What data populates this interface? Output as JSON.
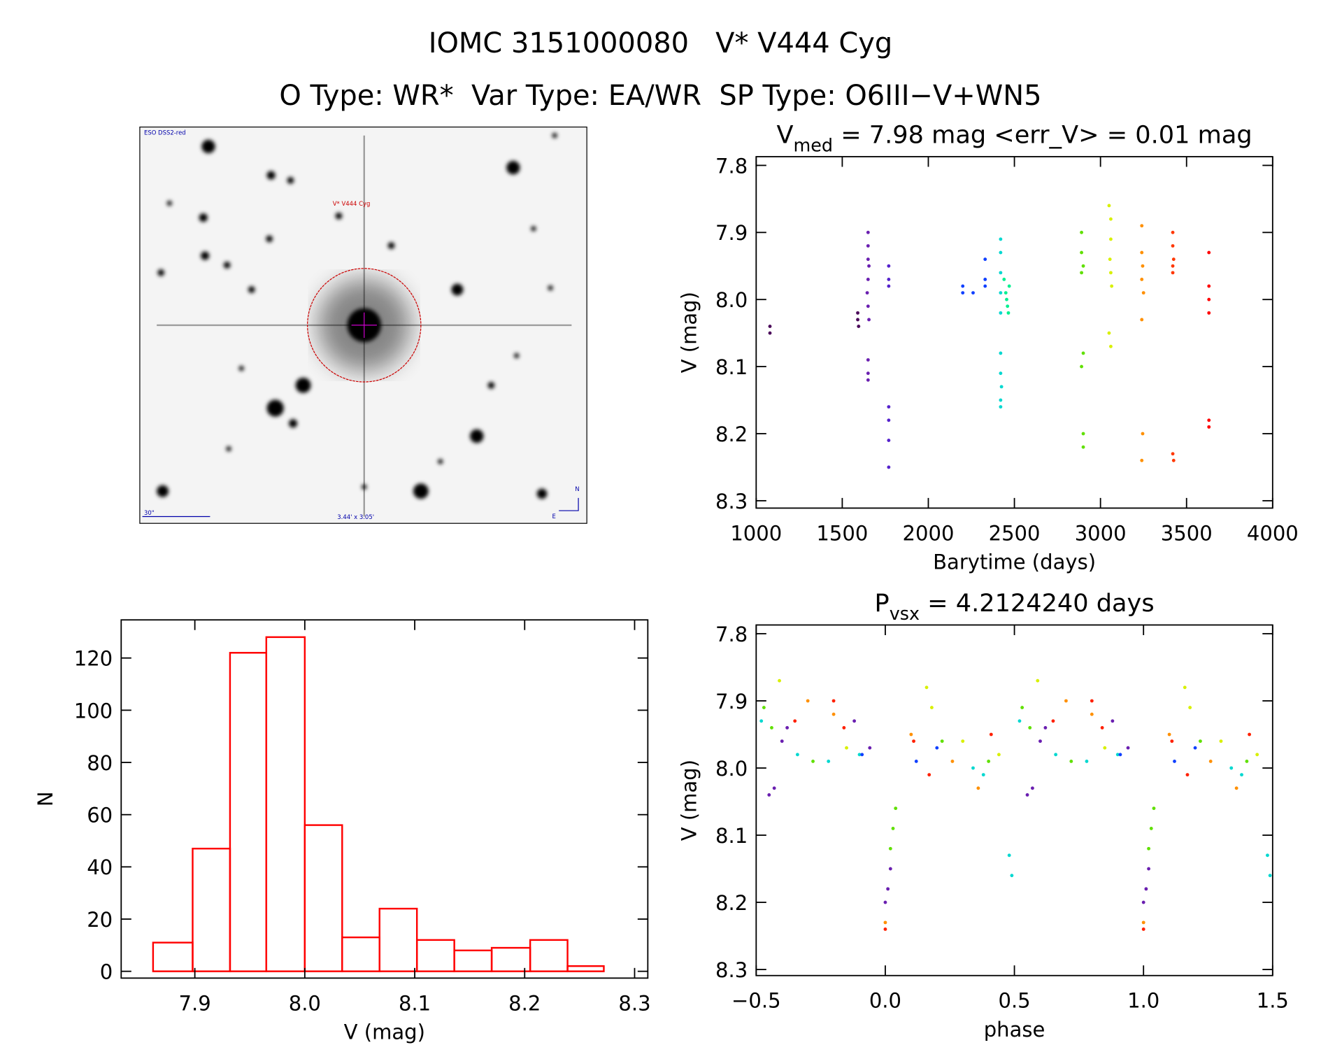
{
  "header": {
    "title": "IOMC 3151000080   V* V444 Cyg",
    "subtitle": "O Type: WR*  Var Type: EA/WR  SP Type: O6III−V+WN5"
  },
  "image": {
    "survey": "ESO DSS2-red",
    "target": "V* V444 Cyg",
    "scale": "30\"",
    "size": "3.44' x 3.05'",
    "north": "N",
    "east": "E"
  },
  "chart_data": [
    {
      "type": "scatter",
      "title": {
        "base": "V",
        "sub": "med",
        "text": " = 7.98 mag <err_V> = 0.01 mag"
      },
      "xlabel": "Barytime (days)",
      "ylabel": "V (mag)",
      "xlim": [
        1000,
        4000
      ],
      "xticks": [
        1000,
        1500,
        2000,
        2500,
        3000,
        3500,
        4000
      ],
      "ylim": [
        7.787,
        8.311
      ],
      "y_inverted": true,
      "yticks": [
        7.8,
        7.9,
        {
          "value": 8,
          "label": "8.0"
        },
        8.1,
        8.2,
        8.3
      ],
      "series": [
        {
          "color": "#4b0a5a",
          "x": [
            1080,
            1080,
            1590,
            1595,
            1590
          ],
          "values": [
            8.04,
            8.05,
            8.03,
            8.04,
            8.02
          ]
        },
        {
          "color": "#6a1fb0",
          "x": [
            1650,
            1650,
            1650,
            1655,
            1650,
            1645,
            1650,
            1655,
            1650,
            1650,
            1650
          ],
          "values": [
            7.9,
            7.92,
            7.94,
            7.95,
            7.97,
            7.99,
            8.01,
            8.03,
            8.09,
            8.11,
            8.12
          ]
        },
        {
          "color": "#5522cc",
          "x": [
            1770,
            1770,
            1770,
            1770,
            1770,
            1770,
            1770
          ],
          "values": [
            7.95,
            7.97,
            7.98,
            8.16,
            8.18,
            8.21,
            8.25
          ]
        },
        {
          "color": "#1040ff",
          "x": [
            2200,
            2200,
            2260,
            2330,
            2330,
            2330
          ],
          "values": [
            7.98,
            7.99,
            7.99,
            7.94,
            7.97,
            7.98
          ]
        },
        {
          "color": "#00d8d0",
          "x": [
            2420,
            2420,
            2420,
            2420,
            2420,
            2420,
            2420,
            2425,
            2420,
            2420
          ],
          "values": [
            7.91,
            7.93,
            7.96,
            7.99,
            8.02,
            8.08,
            8.11,
            8.13,
            8.15,
            8.16
          ]
        },
        {
          "color": "#00f090",
          "x": [
            2440,
            2450,
            2460,
            2470,
            2455,
            2465
          ],
          "values": [
            7.97,
            7.99,
            8.01,
            7.98,
            8.0,
            8.02
          ]
        },
        {
          "color": "#60e000",
          "x": [
            2890,
            2890,
            2900,
            2890,
            2900,
            2890,
            2900,
            2900
          ],
          "values": [
            7.9,
            7.93,
            7.95,
            7.96,
            8.08,
            8.1,
            8.2,
            8.22
          ]
        },
        {
          "color": "#d8f000",
          "x": [
            3050,
            3060,
            3060,
            3055,
            3060,
            3065,
            3050,
            3060
          ],
          "values": [
            7.86,
            7.88,
            7.91,
            7.94,
            7.96,
            7.98,
            8.05,
            8.07
          ]
        },
        {
          "color": "#ff9000",
          "x": [
            3240,
            3240,
            3245,
            3240,
            3250,
            3240,
            3245,
            3240
          ],
          "values": [
            7.89,
            7.93,
            7.95,
            7.97,
            7.99,
            8.03,
            8.2,
            8.24
          ]
        },
        {
          "color": "#ff3800",
          "x": [
            3420,
            3420,
            3425,
            3420,
            3420,
            3420,
            3425
          ],
          "values": [
            7.9,
            7.92,
            7.94,
            7.95,
            7.96,
            8.23,
            8.24
          ]
        },
        {
          "color": "#ff0000",
          "x": [
            3630,
            3630,
            3630,
            3630,
            3630,
            3630
          ],
          "values": [
            7.93,
            7.98,
            8.0,
            8.02,
            8.18,
            8.19
          ]
        }
      ]
    },
    {
      "type": "histogram",
      "xlabel": "V (mag)",
      "ylabel": "N",
      "color": "#ff0000",
      "bins": [
        7.862,
        7.898,
        7.932,
        7.965,
        8.0,
        8.034,
        8.068,
        8.102,
        8.136,
        8.17,
        8.205,
        8.239,
        8.272
      ],
      "counts": [
        11,
        47,
        122,
        128,
        56,
        13,
        24,
        12,
        8,
        9,
        12,
        2
      ],
      "xlim": [
        7.833,
        8.312
      ],
      "xticks": [
        7.9,
        {
          "value": 8,
          "label": "8.0"
        },
        8.1,
        8.2,
        8.3
      ],
      "ylim": [
        -2.6,
        134.6
      ],
      "yticks": [
        0,
        20,
        40,
        60,
        80,
        100,
        120
      ]
    },
    {
      "type": "scatter",
      "title": {
        "base": "P",
        "sub": "vsx",
        "text": " = 4.2124240 days"
      },
      "xlabel": "phase",
      "ylabel": "V (mag)",
      "xlim": [
        -0.5,
        1.5
      ],
      "xticks": [
        {
          "value": -0.5,
          "label": "−0.5"
        },
        {
          "value": 0,
          "label": "0.0"
        },
        0.5,
        {
          "value": 1,
          "label": "1.0"
        },
        1.5
      ],
      "ylim": [
        7.787,
        8.309
      ],
      "y_inverted": true,
      "yticks": [
        7.8,
        7.9,
        {
          "value": 8,
          "label": "8.0"
        },
        8.1,
        8.2,
        8.3
      ],
      "series": [
        {
          "color": "#6a1fb0",
          "x": [
            -0.45,
            -0.43,
            -0.4,
            -0.38,
            -0.12,
            -0.06,
            0.0,
            0.01,
            0.02,
            0.55,
            0.57,
            0.6,
            0.62,
            0.88,
            0.94,
            1.0,
            1.01,
            1.02
          ],
          "values": [
            8.04,
            8.03,
            7.96,
            7.94,
            7.93,
            7.97,
            8.2,
            8.18,
            8.15,
            8.04,
            8.03,
            7.96,
            7.94,
            7.93,
            7.97,
            8.2,
            8.18,
            8.15
          ]
        },
        {
          "color": "#00d8d0",
          "x": [
            -0.48,
            -0.34,
            -0.22,
            -0.1,
            0.34,
            0.38,
            0.48,
            0.49,
            0.52,
            0.66,
            0.78,
            0.9,
            1.34,
            1.38,
            1.48,
            1.49
          ],
          "values": [
            7.93,
            7.98,
            7.99,
            7.98,
            8.0,
            8.01,
            8.13,
            8.16,
            7.93,
            7.98,
            7.99,
            7.98,
            8.0,
            8.01,
            8.13,
            8.16
          ]
        },
        {
          "color": "#60e000",
          "x": [
            -0.47,
            -0.44,
            -0.28,
            0.02,
            0.03,
            0.04,
            0.22,
            0.4,
            0.53,
            0.56,
            0.72,
            1.02,
            1.03,
            1.04,
            1.22,
            1.4
          ],
          "values": [
            7.91,
            7.94,
            7.99,
            8.12,
            8.09,
            8.06,
            7.96,
            7.99,
            7.91,
            7.94,
            7.99,
            8.12,
            8.09,
            8.06,
            7.96,
            7.99
          ]
        },
        {
          "color": "#d8f000",
          "x": [
            -0.41,
            -0.15,
            0.16,
            0.18,
            0.3,
            0.44,
            0.59,
            0.85,
            1.16,
            1.18,
            1.3,
            1.44
          ],
          "values": [
            7.87,
            7.97,
            7.88,
            7.91,
            7.96,
            7.98,
            7.87,
            7.97,
            7.88,
            7.91,
            7.96,
            7.98
          ]
        },
        {
          "color": "#ff9000",
          "x": [
            -0.3,
            -0.2,
            0.0,
            0.1,
            0.26,
            0.36,
            0.7,
            0.8,
            1.0,
            1.1,
            1.26,
            1.36
          ],
          "values": [
            7.9,
            7.92,
            8.23,
            7.95,
            7.99,
            8.03,
            7.9,
            7.92,
            8.23,
            7.95,
            7.99,
            8.03
          ]
        },
        {
          "color": "#ff2000",
          "x": [
            -0.35,
            -0.2,
            -0.16,
            0.0,
            0.11,
            0.17,
            0.41,
            0.65,
            0.8,
            0.84,
            1.0,
            1.11,
            1.17,
            1.41
          ],
          "values": [
            7.93,
            7.9,
            7.94,
            8.24,
            7.96,
            8.01,
            7.95,
            7.93,
            7.9,
            7.94,
            8.24,
            7.96,
            8.01,
            7.95
          ]
        },
        {
          "color": "#1040ff",
          "x": [
            -0.09,
            0.12,
            0.2,
            0.91,
            1.12,
            1.2
          ],
          "values": [
            7.98,
            7.99,
            7.97,
            7.98,
            7.99,
            7.97
          ]
        }
      ]
    }
  ]
}
